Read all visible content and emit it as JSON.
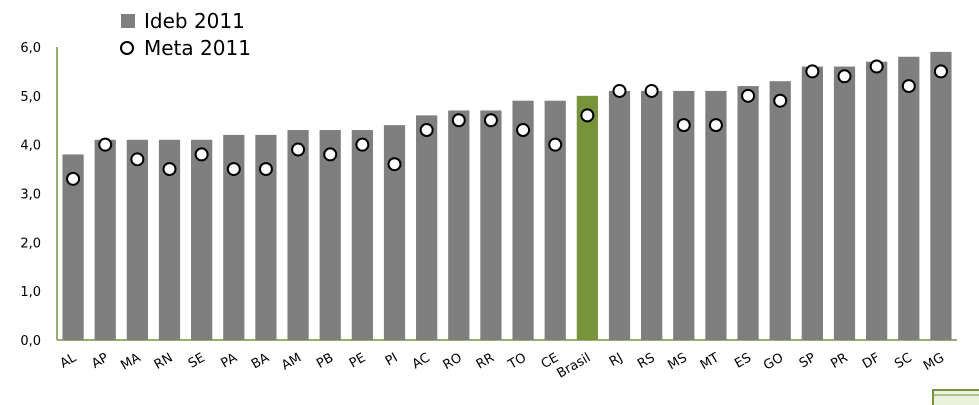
{
  "chart_data": {
    "type": "bar",
    "categories": [
      "AL",
      "AP",
      "MA",
      "RN",
      "SE",
      "PA",
      "BA",
      "AM",
      "PB",
      "PE",
      "PI",
      "AC",
      "RO",
      "RR",
      "TO",
      "CE",
      "Brasil",
      "RJ",
      "RS",
      "MS",
      "MT",
      "ES",
      "GO",
      "SP",
      "PR",
      "DF",
      "SC",
      "MG"
    ],
    "series": [
      {
        "name": "Ideb 2011",
        "marker": "bar",
        "values": [
          3.8,
          4.1,
          4.1,
          4.1,
          4.1,
          4.2,
          4.2,
          4.3,
          4.3,
          4.3,
          4.4,
          4.6,
          4.7,
          4.7,
          4.9,
          4.9,
          5.0,
          5.1,
          5.1,
          5.1,
          5.1,
          5.2,
          5.3,
          5.6,
          5.6,
          5.7,
          5.8,
          5.9
        ]
      },
      {
        "name": "Meta 2011",
        "marker": "circle",
        "values": [
          3.3,
          4.0,
          3.7,
          3.5,
          3.8,
          3.5,
          3.5,
          3.9,
          3.8,
          4.0,
          3.6,
          4.3,
          4.5,
          4.5,
          4.3,
          4.0,
          4.6,
          5.1,
          5.1,
          4.4,
          4.4,
          5.0,
          4.9,
          5.5,
          5.4,
          5.6,
          5.2,
          5.5
        ]
      }
    ],
    "highlight_category": "Brasil",
    "ylim": [
      0,
      6
    ],
    "yticks": [
      "0,0",
      "1,0",
      "2,0",
      "3,0",
      "4,0",
      "5,0",
      "6,0"
    ],
    "xlabel": "",
    "ylabel": "",
    "grid": false,
    "legend_position": "top-left",
    "colors": {
      "bar": "#7f7f7f",
      "highlight": "#77933c",
      "axis": "#77933c",
      "marker_fill": "#ffffff",
      "marker_stroke": "#000000"
    }
  }
}
